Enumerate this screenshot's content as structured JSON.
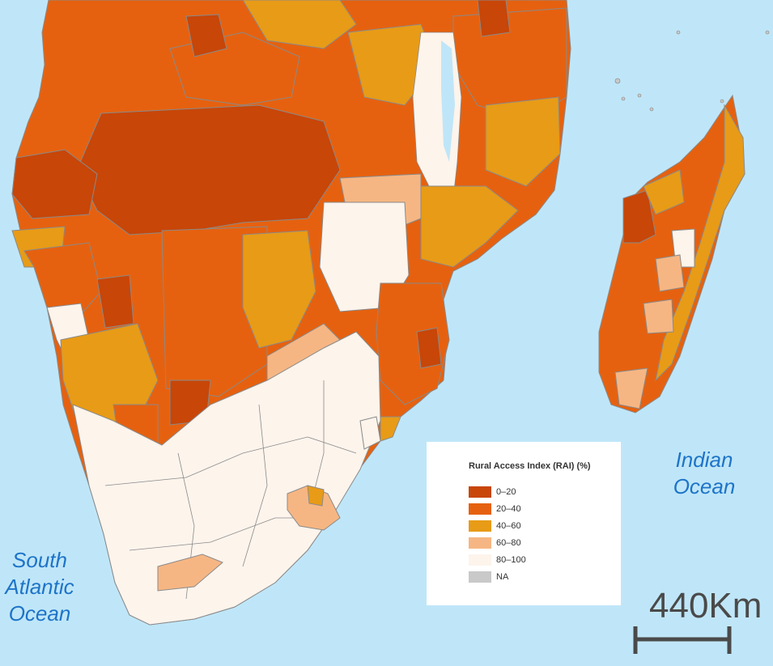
{
  "legend": {
    "title": "Rural Access Index (RAI) (%)",
    "items": [
      {
        "label": "0–20",
        "color": "#c84608"
      },
      {
        "label": "20–40",
        "color": "#e6610f"
      },
      {
        "label": "40–60",
        "color": "#e89b16"
      },
      {
        "label": "60–80",
        "color": "#f6b683"
      },
      {
        "label": "80–100",
        "color": "#fdf4ec"
      },
      {
        "label": "NA",
        "color": "#c9c9c9"
      }
    ]
  },
  "oceans": {
    "indian": [
      "Indian",
      "Ocean"
    ],
    "atlantic": [
      "South",
      "Atlantic",
      "Ocean"
    ]
  },
  "scale": {
    "label": "440Km"
  },
  "colors": {
    "water": "#bfe6f8",
    "border": "#808080"
  }
}
